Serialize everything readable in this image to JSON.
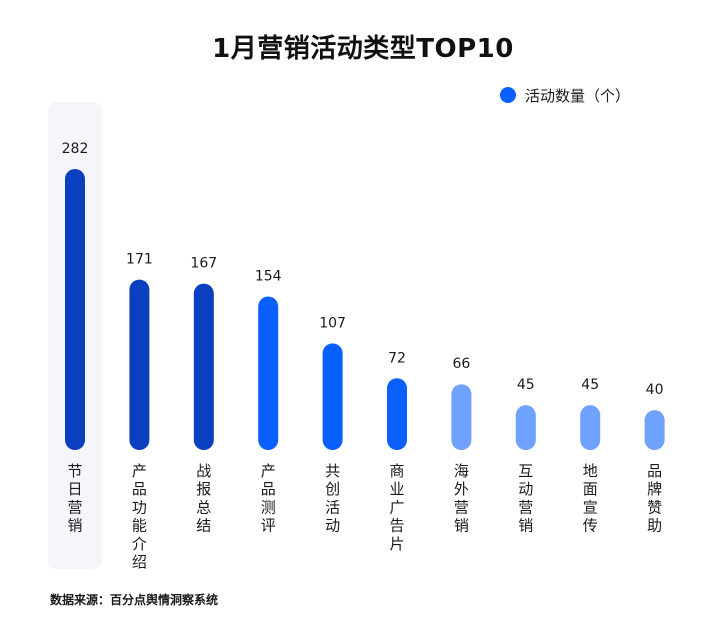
{
  "title": "1月营销活动类型TOP10",
  "legend": {
    "label": "活动数量（个）",
    "color": "#0a5fff"
  },
  "source": "数据来源：百分点舆情洞察系统",
  "chart_data": {
    "type": "bar",
    "title": "1月营销活动类型TOP10",
    "categories": [
      "节日营销",
      "产品功能介绍",
      "战报总结",
      "产品测评",
      "共创活动",
      "商业广告片",
      "海外营销",
      "互动营销",
      "地面宣传",
      "品牌赞助"
    ],
    "series": [
      {
        "name": "活动数量（个）",
        "values": [
          282,
          171,
          167,
          154,
          107,
          72,
          66,
          45,
          45,
          40
        ]
      }
    ],
    "bar_colors": [
      "#0a3fbf",
      "#0a3fbf",
      "#0a3fbf",
      "#0a5fff",
      "#0a5fff",
      "#0a5fff",
      "#6fa2ff",
      "#6fa2ff",
      "#6fa2ff",
      "#6fa2ff"
    ],
    "highlight_category": "节日营销",
    "highlight_color": "#f4f6fb",
    "grid": false,
    "legend_position": "top-right"
  }
}
